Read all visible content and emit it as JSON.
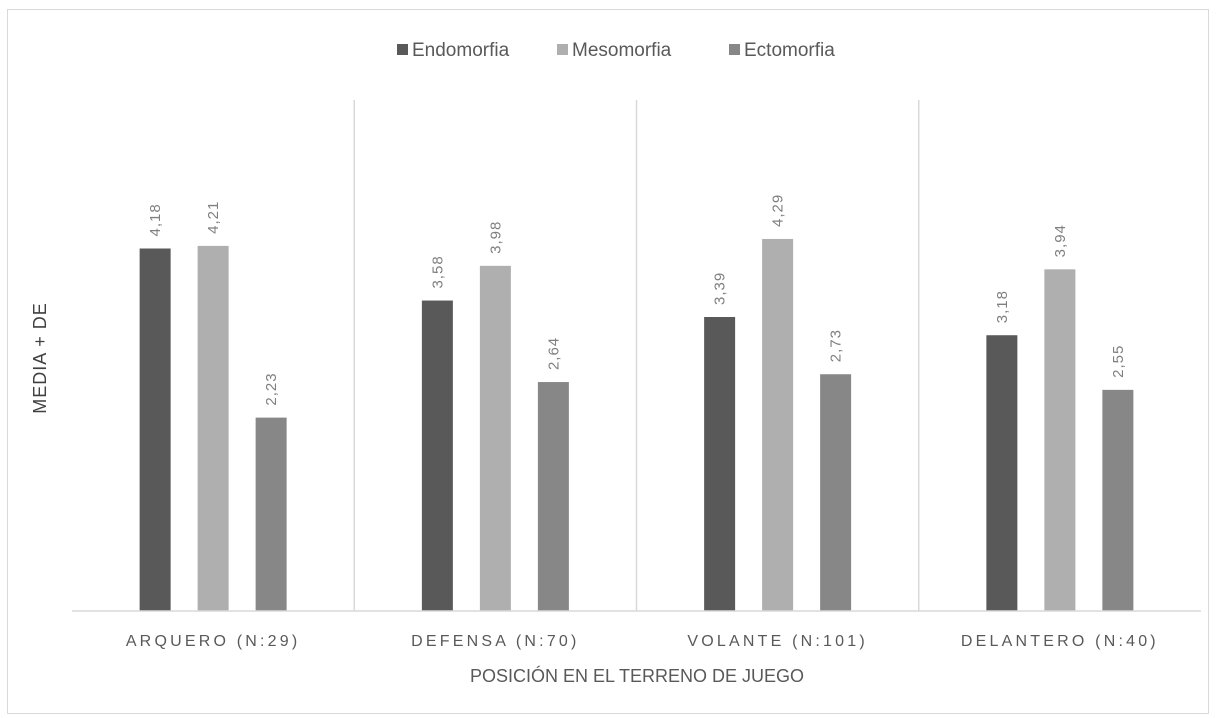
{
  "chart_data": {
    "type": "bar",
    "title": "",
    "xlabel": "POSICIÓN EN EL TERRENO DE JUEGO",
    "ylabel": "MEDIA + DE",
    "categories": [
      "ARQUERO (N:29)",
      "DEFENSA (N:70)",
      "VOLANTE (N:101)",
      "DELANTERO (N:40)"
    ],
    "series": [
      {
        "name": "Endomorfia",
        "color": "#595959",
        "values": [
          4.18,
          3.58,
          3.39,
          3.18
        ]
      },
      {
        "name": "Mesomorfia",
        "color": "#afafaf",
        "values": [
          4.21,
          3.98,
          4.29,
          3.94
        ]
      },
      {
        "name": "Ectomorfia",
        "color": "#878787",
        "values": [
          2.23,
          2.64,
          2.73,
          2.55
        ]
      }
    ],
    "data_labels": [
      [
        "4,18",
        "3,58",
        "3,39",
        "3,18"
      ],
      [
        "4,21",
        "3,98",
        "4,29",
        "3,94"
      ],
      [
        "2,23",
        "2,64",
        "2,73",
        "2,55"
      ]
    ],
    "ylim": [
      0,
      5.95
    ],
    "grid": false,
    "legend_position": "top"
  }
}
